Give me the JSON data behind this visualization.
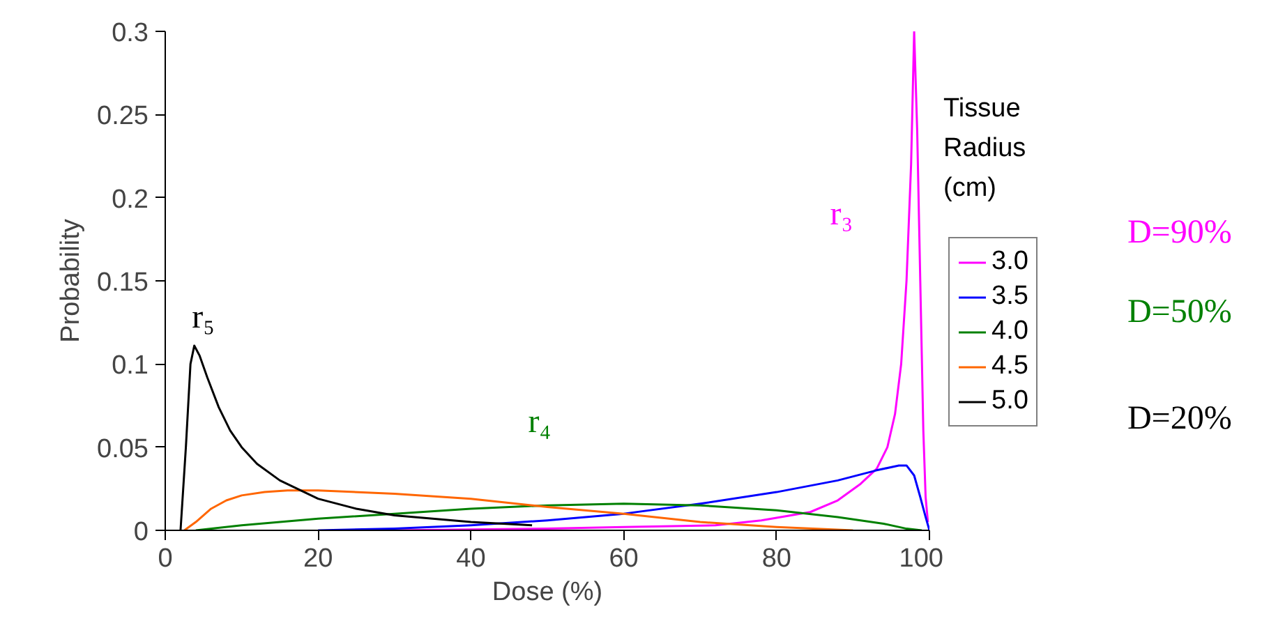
{
  "chart_data": {
    "type": "line",
    "xlabel": "Dose (%)",
    "ylabel": "Probability",
    "legend_title": "Tissue Radius (cm)",
    "xlim": [
      0,
      100
    ],
    "ylim": [
      0,
      0.3
    ],
    "xticks": [
      0,
      20,
      40,
      60,
      80,
      100
    ],
    "yticks": [
      {
        "value": 0,
        "label": "0"
      },
      0.05,
      0.1,
      0.15,
      0.2,
      0.25,
      0.3
    ],
    "grid": false,
    "legend": "right",
    "marker": "none",
    "line_style": "solid",
    "series": [
      {
        "name": "3.0",
        "color": "#ff00ff",
        "x": [
          30,
          50,
          60,
          72,
          78,
          84.4,
          88,
          91,
          93.1,
          94.5,
          95.5,
          96.3,
          97,
          97.6,
          98,
          98.4,
          98.8,
          99.2,
          99.5,
          99.8
        ],
        "values": [
          0,
          0.001,
          0.002,
          0.003,
          0.006,
          0.011,
          0.018,
          0.028,
          0.037,
          0.05,
          0.07,
          0.1,
          0.15,
          0.22,
          0.3,
          0.24,
          0.15,
          0.06,
          0.02,
          0.005
        ]
      },
      {
        "name": "3.5",
        "color": "#0000ff",
        "x": [
          20,
          30,
          40,
          50,
          60,
          70,
          80,
          88,
          93,
          96,
          97,
          98,
          98.8,
          99.5,
          100
        ],
        "values": [
          0,
          0.001,
          0.003,
          0.006,
          0.01,
          0.016,
          0.023,
          0.03,
          0.036,
          0.039,
          0.039,
          0.033,
          0.02,
          0.008,
          0
        ]
      },
      {
        "name": "4.0",
        "color": "#008000",
        "x": [
          4,
          10,
          20,
          30,
          40,
          50,
          60,
          70,
          80,
          88,
          94,
          97,
          99
        ],
        "values": [
          0,
          0.003,
          0.007,
          0.01,
          0.013,
          0.015,
          0.016,
          0.015,
          0.012,
          0.008,
          0.004,
          0.001,
          0
        ]
      },
      {
        "name": "4.5",
        "color": "#ff6600",
        "x": [
          2.5,
          4,
          6,
          8,
          10,
          13,
          16,
          20,
          30,
          40,
          50,
          60,
          70,
          80,
          90
        ],
        "values": [
          0,
          0.005,
          0.013,
          0.018,
          0.021,
          0.023,
          0.024,
          0.024,
          0.022,
          0.019,
          0.014,
          0.01,
          0.005,
          0.002,
          0
        ]
      },
      {
        "name": "5.0",
        "color": "#000000",
        "x": [
          2,
          2.7,
          3.3,
          3.8,
          4.5,
          5.5,
          7,
          8.5,
          10,
          12,
          15,
          20,
          25,
          30,
          40,
          48
        ],
        "values": [
          0,
          0.05,
          0.1,
          0.111,
          0.105,
          0.092,
          0.074,
          0.06,
          0.05,
          0.04,
          0.03,
          0.019,
          0.013,
          0.009,
          0.005,
          0.003
        ]
      }
    ],
    "annotations": [
      "r₃",
      "r₄",
      "r₅",
      "D=90%",
      "D=50%",
      "D=20%"
    ]
  }
}
